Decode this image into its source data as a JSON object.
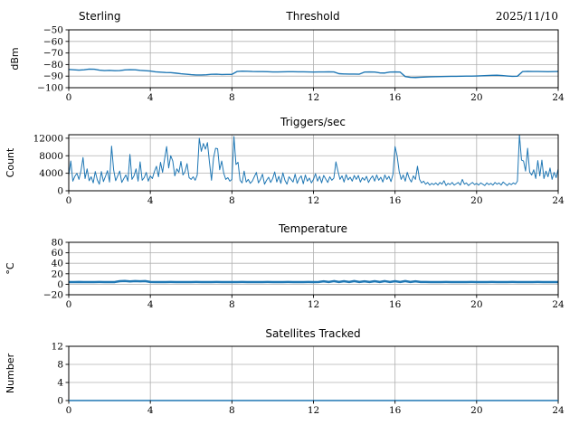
{
  "figure": {
    "background": "#ffffff",
    "grid_color": "#b0b0b0",
    "line_color": "#1f77b4"
  },
  "chart_data": [
    {
      "id": "threshold",
      "type": "line",
      "title": "Threshold",
      "title_left": "Sterling",
      "title_right": "2025/11/10",
      "ylabel": "dBm",
      "xlim": [
        0,
        24
      ],
      "ylim": [
        -100,
        -50
      ],
      "xticks": [
        0,
        4,
        8,
        12,
        16,
        20,
        24
      ],
      "xtick_labels": [
        "0",
        "4",
        "8",
        "12",
        "16",
        "20",
        "24"
      ],
      "yticks": [
        -100,
        -90,
        -80,
        -70,
        -60,
        -50
      ],
      "ytick_labels": [
        "−100",
        "−90",
        "−80",
        "−70",
        "−60",
        "−50"
      ],
      "grid": true,
      "legend": "none",
      "line_color": "#1f77b4",
      "line_width": 1.4,
      "x_start": 0,
      "x_step": 0.25,
      "values": [
        -84.2,
        -84.5,
        -84.8,
        -84.5,
        -83.9,
        -84.0,
        -84.8,
        -85.2,
        -85.0,
        -85.3,
        -85.2,
        -84.6,
        -84.4,
        -84.5,
        -85.0,
        -85.3,
        -85.6,
        -86.3,
        -86.6,
        -86.9,
        -87.0,
        -87.4,
        -87.9,
        -88.3,
        -88.7,
        -89.0,
        -89.0,
        -88.8,
        -88.4,
        -88.3,
        -88.6,
        -88.5,
        -88.5,
        -86.0,
        -85.7,
        -85.8,
        -86.0,
        -86.1,
        -86.1,
        -86.2,
        -86.4,
        -86.4,
        -86.3,
        -86.2,
        -86.2,
        -86.3,
        -86.3,
        -86.4,
        -86.5,
        -86.4,
        -86.4,
        -86.3,
        -86.4,
        -87.9,
        -88.1,
        -88.2,
        -88.2,
        -88.3,
        -86.5,
        -86.4,
        -86.5,
        -87.2,
        -87.3,
        -86.5,
        -86.4,
        -86.5,
        -90.4,
        -91.1,
        -91.2,
        -91.0,
        -90.8,
        -90.6,
        -90.5,
        -90.4,
        -90.3,
        -90.2,
        -90.2,
        -90.1,
        -90.0,
        -90.0,
        -89.9,
        -89.7,
        -89.5,
        -89.3,
        -89.2,
        -89.5,
        -89.9,
        -90.2,
        -90.1,
        -86.1,
        -85.9,
        -86.0,
        -86.0,
        -86.1,
        -86.2,
        -86.1,
        -86.0
      ]
    },
    {
      "id": "triggers",
      "type": "line",
      "title": "Triggers/sec",
      "ylabel": "Count",
      "xlim": [
        0,
        24
      ],
      "ylim": [
        0,
        12800
      ],
      "xticks": [
        0,
        4,
        8,
        12,
        16,
        20,
        24
      ],
      "xtick_labels": [
        "0",
        "4",
        "8",
        "12",
        "16",
        "20",
        "24"
      ],
      "yticks": [
        0,
        4000,
        8000,
        12000
      ],
      "ytick_labels": [
        "0",
        "4000",
        "8000",
        "12000"
      ],
      "grid": true,
      "legend": "none",
      "line_color": "#1f77b4",
      "line_width": 1,
      "x_start": 0,
      "x_step": 0.1,
      "values": [
        3500,
        6800,
        2200,
        3300,
        4000,
        2600,
        4600,
        7600,
        2800,
        5000,
        2300,
        3200,
        1800,
        4400,
        2500,
        1500,
        4400,
        2100,
        3300,
        4600,
        2000,
        10200,
        4800,
        2300,
        3400,
        4500,
        1900,
        2800,
        3600,
        2200,
        8300,
        2600,
        3400,
        5000,
        2200,
        6600,
        2400,
        3000,
        4200,
        2200,
        3400,
        2800,
        4400,
        5600,
        3200,
        6500,
        4200,
        7300,
        10100,
        5200,
        8000,
        6800,
        3400,
        5000,
        4200,
        6700,
        3600,
        4400,
        6200,
        3000,
        2600,
        3200,
        2400,
        3600,
        12000,
        9000,
        10800,
        9500,
        11000,
        6500,
        2400,
        7500,
        9700,
        9600,
        4800,
        6800,
        4000,
        2600,
        3000,
        2200,
        2600,
        12400,
        6000,
        6500,
        2400,
        1800,
        4500,
        2000,
        2600,
        1700,
        2200,
        3200,
        4200,
        1800,
        2600,
        3800,
        1500,
        2400,
        3100,
        1900,
        2800,
        4300,
        2000,
        3300,
        1700,
        4100,
        2400,
        1500,
        3200,
        2600,
        2000,
        3800,
        1700,
        2800,
        3400,
        1600,
        3600,
        2200,
        2900,
        1800,
        2600,
        3900,
        2200,
        3300,
        1800,
        3500,
        2700,
        1900,
        3200,
        2400,
        2900,
        6600,
        4500,
        2600,
        3400,
        2000,
        3700,
        2500,
        3100,
        2200,
        3500,
        2600,
        3500,
        2000,
        3000,
        2400,
        3300,
        1900,
        2800,
        3400,
        2200,
        3600,
        2400,
        3100,
        2000,
        3600,
        2600,
        3300,
        2100,
        3800,
        10100,
        8000,
        4500,
        2600,
        3600,
        2200,
        4200,
        2800,
        2000,
        3400,
        2600,
        5600,
        2600,
        1800,
        2200,
        1500,
        1900,
        1300,
        1700,
        1400,
        1800,
        1300,
        1900,
        1500,
        2300,
        1200,
        1700,
        1400,
        1900,
        1300,
        1600,
        1900,
        1300,
        2600,
        1500,
        1800,
        1200,
        1600,
        1900,
        1400,
        1700,
        1300,
        1800,
        1500,
        1200,
        1800,
        1400,
        1700,
        1300,
        1900,
        1500,
        1800,
        1300,
        2000,
        1600,
        1200,
        1700,
        1400,
        1800,
        1500,
        2200,
        12800,
        7000,
        6800,
        4500,
        9700,
        4300,
        3600,
        4800,
        2800,
        6900,
        3400,
        7000,
        2800,
        4500,
        3200,
        5200,
        2600,
        4200,
        3000,
        5000
      ]
    },
    {
      "id": "temperature",
      "type": "line",
      "title": "Temperature",
      "ylabel": "°C",
      "xlim": [
        0,
        24
      ],
      "ylim": [
        -20,
        80
      ],
      "xticks": [
        0,
        4,
        8,
        12,
        16,
        20,
        24
      ],
      "xtick_labels": [
        "0",
        "4",
        "8",
        "12",
        "16",
        "20",
        "24"
      ],
      "yticks": [
        -20,
        0,
        20,
        40,
        60,
        80
      ],
      "ytick_labels": [
        "−20",
        "0",
        "20",
        "40",
        "60",
        "80"
      ],
      "grid": true,
      "legend": "none",
      "line_color": "#1f77b4",
      "line_width": 2.5,
      "x_start": 0,
      "x_step": 0.25,
      "values": [
        4.2,
        4.1,
        4.3,
        4.2,
        4.1,
        4.2,
        4.3,
        4.2,
        4.1,
        4.2,
        5.8,
        6.2,
        5.5,
        6.0,
        5.6,
        6.1,
        4.3,
        4.2,
        4.1,
        4.2,
        4.3,
        4.2,
        4.1,
        4.2,
        4.2,
        4.3,
        4.2,
        4.1,
        4.2,
        4.3,
        4.2,
        4.2,
        4.1,
        4.2,
        4.3,
        4.2,
        4.1,
        4.2,
        4.2,
        4.3,
        4.2,
        4.1,
        4.2,
        4.3,
        4.2,
        4.1,
        4.2,
        4.3,
        4.2,
        4.4,
        5.6,
        4.3,
        6.0,
        4.4,
        5.8,
        4.3,
        6.1,
        4.4,
        5.7,
        4.3,
        5.9,
        4.4,
        6.0,
        4.3,
        5.8,
        4.4,
        6.1,
        4.3,
        5.7,
        4.4,
        4.3,
        4.2,
        4.1,
        4.2,
        4.3,
        4.2,
        4.1,
        4.2,
        4.2,
        4.3,
        4.2,
        4.1,
        4.2,
        4.3,
        4.2,
        4.1,
        4.2,
        4.3,
        4.2,
        4.1,
        4.2,
        4.2,
        4.3,
        4.2,
        4.1,
        4.2,
        4.2
      ]
    },
    {
      "id": "satellites",
      "type": "line",
      "title": "Satellites Tracked",
      "ylabel": "Number",
      "xlim": [
        0,
        24
      ],
      "ylim": [
        0,
        12
      ],
      "xticks": [
        0,
        4,
        8,
        12,
        16,
        20,
        24
      ],
      "xtick_labels": [
        "0",
        "4",
        "8",
        "12",
        "16",
        "20",
        "24"
      ],
      "yticks": [
        0,
        4,
        8,
        12
      ],
      "ytick_labels": [
        "0",
        "4",
        "8",
        "12"
      ],
      "grid": true,
      "legend": "none",
      "line_color": "#1f77b4",
      "line_width": 1.6,
      "x_start": 0,
      "x_step": 24,
      "values": [
        0,
        0
      ]
    }
  ]
}
